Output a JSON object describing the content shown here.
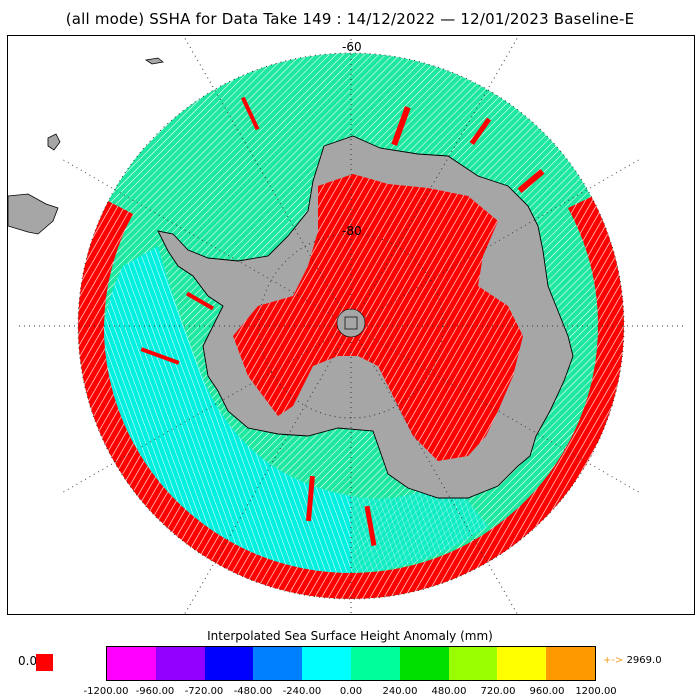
{
  "title": "(all mode) SSHA for Data Take 149 : 14/12/2022 — 12/01/2023 Baseline-E",
  "map": {
    "projection": "south-polar-stereographic",
    "lat_labels": [
      "-60",
      "-80"
    ],
    "colors": {
      "land": "#a6a6a6",
      "coast_outline": "#000000",
      "graticule": "#333333",
      "high_anomaly": "#ff0000",
      "ocean_mid": "#00e5a8",
      "ocean_low": "#00ffff"
    }
  },
  "colorbar": {
    "title": "Interpolated Sea Surface Height Anomaly (mm)",
    "colors": [
      "#ff00ff",
      "#9400ff",
      "#0000ff",
      "#0080ff",
      "#00ffff",
      "#00ff99",
      "#00e000",
      "#99ff00",
      "#ffff00",
      "#ff9900"
    ],
    "tick_labels": [
      "-1200.00",
      "-960.00",
      "-720.00",
      "-480.00",
      "-240.00",
      "0.00",
      "240.00",
      "480.00",
      "720.00",
      "960.00",
      "1200.00"
    ],
    "below_label": "0.0",
    "below_color": "#ff0000",
    "above_arrow": "+->",
    "above_label": "2969.0",
    "above_color": "#f0a020"
  }
}
